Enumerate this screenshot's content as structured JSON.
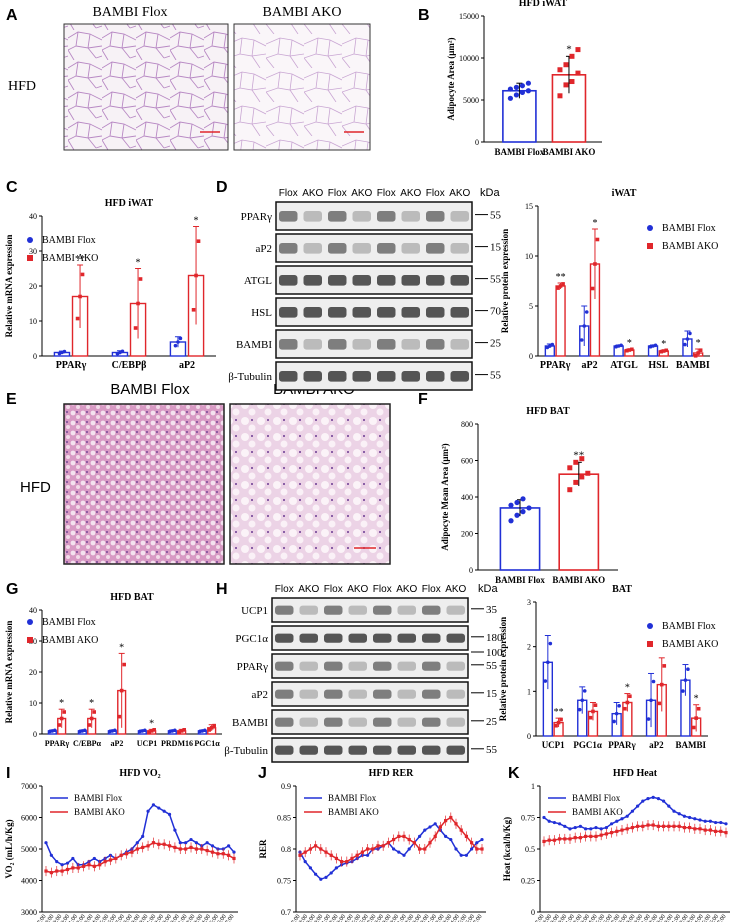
{
  "panel_letters": {
    "A": "A",
    "B": "B",
    "C": "C",
    "D": "D",
    "E": "E",
    "F": "F",
    "G": "G",
    "H": "H",
    "I": "I",
    "J": "J",
    "K": "K"
  },
  "micrographs_A": {
    "row_label": "HFD",
    "left_title": "BAMBI Flox",
    "right_title": "BAMBI AKO"
  },
  "micrographs_E": {
    "row_label": "HFD",
    "left_title": "BAMBI Flox",
    "right_title": "BAMBI AKO"
  },
  "colors": {
    "flox": "#2130d6",
    "ako": "#e0262b"
  },
  "blot_D": {
    "lane_labels": [
      "Flox",
      "AKO",
      "Flox",
      "AKO",
      "Flox",
      "AKO",
      "Flox",
      "AKO"
    ],
    "kda_label": "kDa",
    "bands": [
      {
        "name": "PPARγ",
        "kda": "55"
      },
      {
        "name": "aP2",
        "kda": "15"
      },
      {
        "name": "ATGL",
        "kda": "55"
      },
      {
        "name": "HSL",
        "kda": "70"
      },
      {
        "name": "BAMBI",
        "kda": "25"
      },
      {
        "name": "β-Tubulin",
        "kda": "55"
      }
    ]
  },
  "blot_H": {
    "lane_labels": [
      "Flox",
      "AKO",
      "Flox",
      "AKO",
      "Flox",
      "AKO",
      "Flox",
      "AKO"
    ],
    "kda_label": "kDa",
    "bands": [
      {
        "name": "UCP1",
        "kda": "35"
      },
      {
        "name": "PGC1α",
        "kda": "180",
        "kda2": "100"
      },
      {
        "name": "PPARγ",
        "kda": "55"
      },
      {
        "name": "aP2",
        "kda": "15"
      },
      {
        "name": "BAMBI",
        "kda": "25"
      },
      {
        "name": "β-Tubulin",
        "kda": "55"
      }
    ]
  },
  "chart_data": [
    {
      "id": "B",
      "type": "bar",
      "title": "HFD iWAT",
      "ylabel": "Adipocyte Area (μm²)",
      "ylim": [
        0,
        15000
      ],
      "yticks": [
        0,
        5000,
        10000,
        15000
      ],
      "categories": [
        "BAMBI Flox",
        "BAMBI AKO"
      ],
      "values": [
        6100,
        8000
      ],
      "errors": [
        900,
        2200
      ],
      "annotations": [
        "",
        "*"
      ],
      "points": [
        [
          5200,
          5600,
          5900,
          6100,
          6300,
          6500,
          6700,
          7000
        ],
        [
          5500,
          6800,
          7200,
          8200,
          8600,
          9200,
          10200,
          11000
        ]
      ]
    },
    {
      "id": "C",
      "type": "bar",
      "title": "HFD iWAT",
      "ylabel": "Relative mRNA expression",
      "ylim": [
        0,
        40
      ],
      "yticks": [
        0,
        10,
        20,
        30,
        40
      ],
      "categories": [
        "PPARγ",
        "C/EBPβ",
        "aP2"
      ],
      "series": [
        {
          "name": "BAMBI Flox",
          "values": [
            1,
            1,
            4
          ],
          "errors": [
            0.4,
            0.5,
            1.5
          ]
        },
        {
          "name": "BAMBI AKO",
          "values": [
            17,
            15,
            23
          ],
          "errors": [
            9,
            10,
            14
          ]
        }
      ],
      "annotations": [
        "**",
        "*",
        "*"
      ],
      "legend": "top-left"
    },
    {
      "id": "D",
      "type": "bar",
      "title": "iWAT",
      "ylabel": "Relative protein expression",
      "ylim": [
        0,
        15
      ],
      "yticks": [
        0,
        5,
        10,
        15
      ],
      "categories": [
        "PPARγ",
        "aP2",
        "ATGL",
        "HSL",
        "BAMBI"
      ],
      "series": [
        {
          "name": "BAMBI Flox",
          "values": [
            1,
            3,
            1,
            1,
            1.7
          ],
          "errors": [
            0.2,
            2,
            0.1,
            0.1,
            0.8
          ]
        },
        {
          "name": "BAMBI AKO",
          "values": [
            7,
            9.2,
            0.6,
            0.5,
            0.3
          ],
          "errors": [
            0.3,
            3.5,
            0.1,
            0.1,
            0.4
          ]
        }
      ],
      "annotations": [
        "**",
        "*",
        "*",
        "*",
        "*"
      ],
      "legend": "top-right"
    },
    {
      "id": "F",
      "type": "bar",
      "title": "HFD BAT",
      "ylabel": "Adipocyte Mean Area (μm²)",
      "ylim": [
        0,
        800
      ],
      "yticks": [
        0,
        200,
        400,
        600,
        800
      ],
      "categories": [
        "BAMBI Flox",
        "BAMBI AKO"
      ],
      "values": [
        340,
        525
      ],
      "errors": [
        45,
        65
      ],
      "annotations": [
        "",
        "**"
      ],
      "points": [
        [
          270,
          300,
          320,
          340,
          355,
          370,
          390
        ],
        [
          440,
          480,
          510,
          530,
          560,
          590,
          610
        ]
      ]
    },
    {
      "id": "G",
      "type": "bar",
      "title": "HFD BAT",
      "ylabel": "Relative mRNA expression",
      "ylim": [
        0,
        40
      ],
      "yticks": [
        0,
        10,
        20,
        30,
        40
      ],
      "categories": [
        "PPARγ",
        "C/EBPα",
        "aP2",
        "UCP1",
        "PRDM16",
        "PGC1α"
      ],
      "series": [
        {
          "name": "BAMBI Flox",
          "values": [
            1,
            1,
            1,
            1,
            1,
            1
          ],
          "errors": [
            0.3,
            0.3,
            0.3,
            0.3,
            0.3,
            0.3
          ]
        },
        {
          "name": "BAMBI AKO",
          "values": [
            5,
            5,
            14,
            1,
            1,
            2
          ],
          "errors": [
            3,
            3,
            12,
            0.5,
            0.5,
            1
          ]
        }
      ],
      "annotations": [
        "*",
        "*",
        "*",
        "*",
        "",
        ""
      ],
      "legend": "top-left"
    },
    {
      "id": "H",
      "type": "bar",
      "title": "BAT",
      "ylabel": "Relative protein expression",
      "ylim": [
        0,
        3
      ],
      "yticks": [
        0,
        1,
        2,
        3
      ],
      "categories": [
        "UCP1",
        "PGC1α",
        "PPARγ",
        "aP2",
        "BAMBI"
      ],
      "series": [
        {
          "name": "BAMBI Flox",
          "values": [
            1.65,
            0.8,
            0.5,
            0.8,
            1.25
          ],
          "errors": [
            0.6,
            0.3,
            0.25,
            0.6,
            0.35
          ]
        },
        {
          "name": "BAMBI AKO",
          "values": [
            0.3,
            0.55,
            0.75,
            1.15,
            0.4
          ],
          "errors": [
            0.1,
            0.2,
            0.2,
            0.6,
            0.3
          ]
        }
      ],
      "annotations": [
        "**",
        "",
        "*",
        "",
        "*"
      ],
      "legend": "top-right"
    },
    {
      "id": "I",
      "type": "line",
      "title": "HFD VO₂",
      "ylabel": "VO₂ (mL/h/Kg)",
      "ylim": [
        3000,
        7000
      ],
      "yticks": [
        3000,
        4000,
        5000,
        6000,
        7000
      ],
      "series": [
        {
          "name": "BAMBI Flox",
          "values": [
            5200,
            4800,
            4600,
            4500,
            4550,
            4700,
            4500,
            4500,
            4600,
            4700,
            4600,
            4700,
            4800,
            4700,
            4800,
            4900,
            5000,
            5200,
            5400,
            6200,
            6400,
            6300,
            6200,
            6100,
            5600,
            5200,
            5200,
            5300,
            5200,
            5100,
            5200,
            5100,
            5000,
            5000,
            5100,
            4900
          ]
        },
        {
          "name": "BAMBI AKO",
          "values": [
            4300,
            4250,
            4300,
            4300,
            4350,
            4400,
            4400,
            4450,
            4500,
            4450,
            4500,
            4600,
            4650,
            4700,
            4800,
            4850,
            4900,
            5000,
            5050,
            5100,
            5200,
            5150,
            5150,
            5100,
            5050,
            5000,
            5000,
            5050,
            5000,
            5000,
            4950,
            4900,
            4850,
            4850,
            4800,
            4700
          ]
        }
      ],
      "xticks": [
        "7:00",
        "8:00",
        "9:00",
        "10:00",
        "11:00",
        "12:00",
        "13:00",
        "14:00",
        "15:00",
        "16:00",
        "17:00",
        "18:00",
        "19:00",
        "20:00",
        "21:00",
        "22:00",
        "23:00",
        "0:00",
        "1:00",
        "2:00",
        "3:00",
        "4:00",
        "5:00",
        "6:00",
        "7:00"
      ],
      "legend": "top-left"
    },
    {
      "id": "J",
      "type": "line",
      "title": "HFD RER",
      "ylabel": "RER",
      "ylim": [
        0.7,
        0.9
      ],
      "yticks": [
        0.7,
        0.75,
        0.8,
        0.85,
        0.9
      ],
      "series": [
        {
          "name": "BAMBI Flox",
          "values": [
            0.795,
            0.78,
            0.77,
            0.76,
            0.752,
            0.755,
            0.762,
            0.77,
            0.775,
            0.778,
            0.78,
            0.785,
            0.79,
            0.79,
            0.8,
            0.8,
            0.805,
            0.81,
            0.8,
            0.795,
            0.79,
            0.8,
            0.81,
            0.82,
            0.83,
            0.835,
            0.84,
            0.83,
            0.82,
            0.815,
            0.8,
            0.79,
            0.79,
            0.8,
            0.81,
            0.815
          ]
        },
        {
          "name": "BAMBI AKO",
          "values": [
            0.79,
            0.795,
            0.8,
            0.805,
            0.8,
            0.795,
            0.79,
            0.785,
            0.78,
            0.78,
            0.785,
            0.79,
            0.795,
            0.8,
            0.8,
            0.805,
            0.805,
            0.81,
            0.815,
            0.82,
            0.82,
            0.815,
            0.81,
            0.8,
            0.8,
            0.81,
            0.82,
            0.835,
            0.845,
            0.85,
            0.84,
            0.83,
            0.82,
            0.81,
            0.8,
            0.8
          ]
        }
      ],
      "xticks": [
        "7:00",
        "8:00",
        "9:00",
        "10:00",
        "11:00",
        "12:00",
        "13:00",
        "14:00",
        "15:00",
        "16:00",
        "17:00",
        "18:00",
        "19:00",
        "20:00",
        "21:00",
        "22:00",
        "23:00",
        "0:00",
        "1:00",
        "2:00",
        "3:00",
        "4:00",
        "5:00",
        "6:00",
        "7:00"
      ],
      "legend": "top-left"
    },
    {
      "id": "K",
      "type": "line",
      "title": "HFD Heat",
      "ylabel": "Heat (kcal/h/Kg)",
      "ylim": [
        0,
        1.0
      ],
      "yticks": [
        0,
        0.25,
        0.5,
        0.75,
        1.0
      ],
      "series": [
        {
          "name": "BAMBI Flox",
          "values": [
            0.75,
            0.72,
            0.71,
            0.7,
            0.68,
            0.66,
            0.67,
            0.68,
            0.66,
            0.66,
            0.67,
            0.66,
            0.67,
            0.7,
            0.72,
            0.74,
            0.76,
            0.8,
            0.84,
            0.88,
            0.9,
            0.91,
            0.9,
            0.88,
            0.84,
            0.8,
            0.78,
            0.76,
            0.75,
            0.74,
            0.73,
            0.72,
            0.72,
            0.71,
            0.71,
            0.7
          ]
        },
        {
          "name": "BAMBI AKO",
          "values": [
            0.56,
            0.57,
            0.57,
            0.58,
            0.58,
            0.58,
            0.59,
            0.59,
            0.6,
            0.6,
            0.6,
            0.61,
            0.62,
            0.63,
            0.64,
            0.65,
            0.66,
            0.67,
            0.68,
            0.68,
            0.69,
            0.69,
            0.68,
            0.68,
            0.68,
            0.68,
            0.68,
            0.67,
            0.67,
            0.66,
            0.66,
            0.65,
            0.65,
            0.64,
            0.64,
            0.63
          ]
        }
      ],
      "xticks": [
        "7:00",
        "8:00",
        "9:00",
        "10:00",
        "11:00",
        "12:00",
        "13:00",
        "14:00",
        "15:00",
        "16:00",
        "17:00",
        "18:00",
        "19:00",
        "20:00",
        "21:00",
        "22:00",
        "23:00",
        "0:00",
        "1:00",
        "2:00",
        "3:00",
        "4:00",
        "5:00",
        "6:00",
        "7:00"
      ],
      "legend": "top-left"
    }
  ]
}
